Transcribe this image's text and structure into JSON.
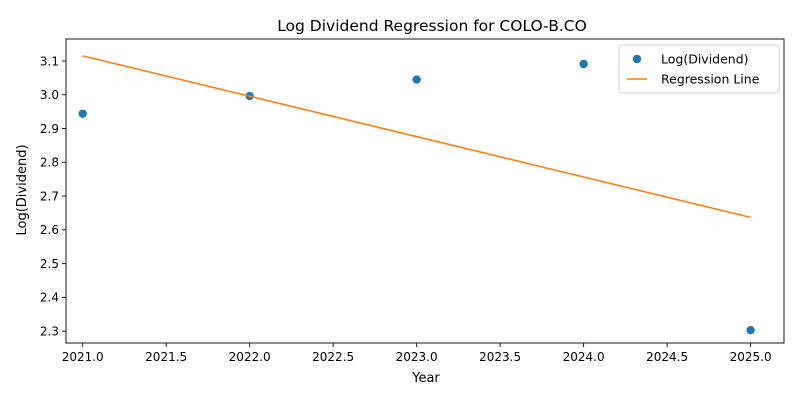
{
  "chart_data": {
    "type": "scatter",
    "title": "Log Dividend Regression for COLO-B.CO",
    "xlabel": "Year",
    "ylabel": "Log(Dividend)",
    "xlim": [
      2020.9,
      2025.2
    ],
    "ylim": [
      2.265,
      3.165
    ],
    "xticks": [
      "2021.0",
      "2021.5",
      "2022.0",
      "2022.5",
      "2023.0",
      "2023.5",
      "2024.0",
      "2024.5",
      "2025.0"
    ],
    "yticks": [
      "2.3",
      "2.4",
      "2.5",
      "2.6",
      "2.7",
      "2.8",
      "2.9",
      "3.0",
      "3.1"
    ],
    "grid": false,
    "legend_position": "upper right",
    "series": [
      {
        "name": "Log(Dividend)",
        "kind": "scatter",
        "color": "#1f77b4",
        "x": [
          2021,
          2022,
          2023,
          2024,
          2025
        ],
        "y": [
          2.944,
          2.996,
          3.045,
          3.091,
          2.303
        ]
      },
      {
        "name": "Regression Line",
        "kind": "line",
        "color": "#ff7f0e",
        "x": [
          2021,
          2025
        ],
        "y": [
          3.115,
          2.637
        ]
      }
    ]
  }
}
